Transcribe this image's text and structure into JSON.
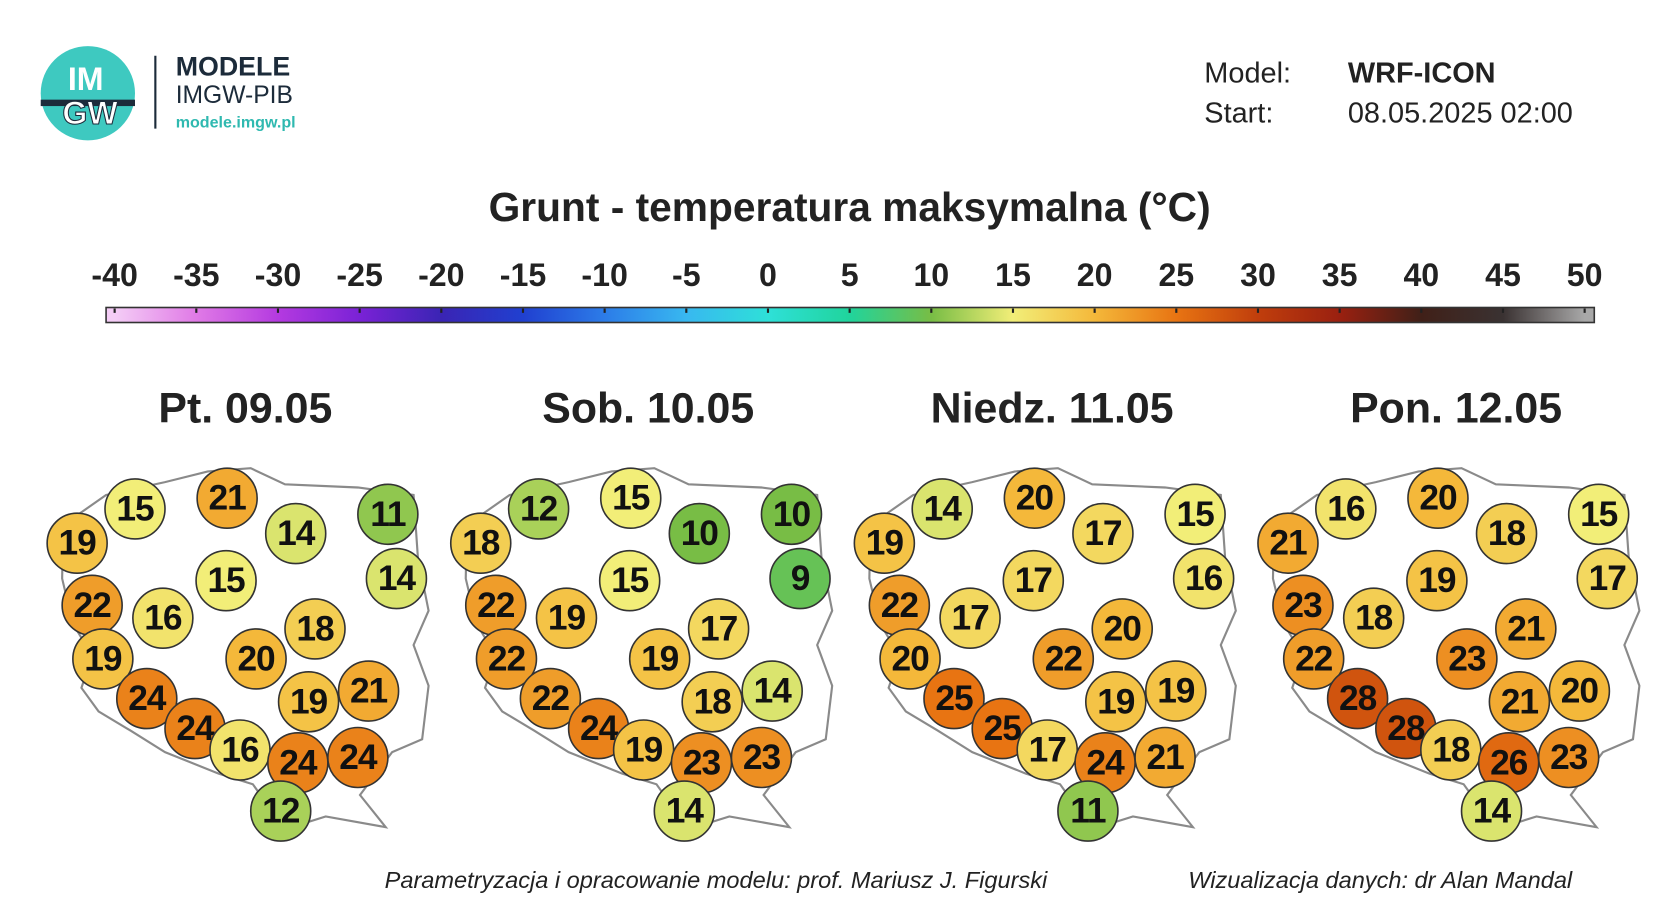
{
  "header": {
    "logo_letters": [
      "IM",
      "GW"
    ],
    "logo_title": "MODELE",
    "logo_subtitle": "IMGW-PIB",
    "logo_url": "modele.imgw.pl",
    "model_label": "Model:",
    "model_value": "WRF-ICON",
    "start_label": "Start:",
    "start_value": "08.05.2025 02:00"
  },
  "title": "Grunt - temperatura maksymalna (°C)",
  "colorbar": {
    "ticks": [
      -40,
      -35,
      -30,
      -25,
      -20,
      -15,
      -10,
      -5,
      0,
      5,
      10,
      15,
      20,
      25,
      30,
      35,
      40,
      45,
      50
    ],
    "colors": [
      "#f4cdf6",
      "#e07ae6",
      "#b43ae0",
      "#7a22d6",
      "#3a24b4",
      "#2040d0",
      "#2c7ce8",
      "#38b8f0",
      "#2ee0d8",
      "#20d49c",
      "#78bd45",
      "#f2ee78",
      "#f4b83a",
      "#e87412",
      "#c03e0c",
      "#9a2010",
      "#402018",
      "#3a3232",
      "#a8a8a8"
    ]
  },
  "panels": [
    {
      "label": "Pt. 09.05",
      "values": [
        19,
        15,
        21,
        14,
        11,
        14,
        15,
        22,
        16,
        18,
        19,
        20,
        24,
        24,
        16,
        24,
        19,
        21,
        24,
        12
      ]
    },
    {
      "label": "Sob. 10.05",
      "values": [
        18,
        12,
        15,
        10,
        10,
        9,
        15,
        22,
        19,
        17,
        22,
        19,
        22,
        24,
        19,
        23,
        18,
        14,
        23,
        14
      ]
    },
    {
      "label": "Niedz. 11.05",
      "values": [
        19,
        14,
        20,
        17,
        15,
        16,
        17,
        22,
        17,
        20,
        20,
        22,
        25,
        25,
        17,
        24,
        19,
        19,
        21,
        11
      ]
    },
    {
      "label": "Pon. 12.05",
      "values": [
        21,
        16,
        20,
        18,
        15,
        17,
        19,
        23,
        18,
        21,
        22,
        23,
        28,
        28,
        18,
        26,
        21,
        20,
        23,
        14
      ]
    }
  ],
  "footer": {
    "left": "Parametryzacja i opracowanie modelu: prof. Mariusz J. Figurski",
    "right": "Wizualizacja danych: dr Alan Mandal"
  }
}
